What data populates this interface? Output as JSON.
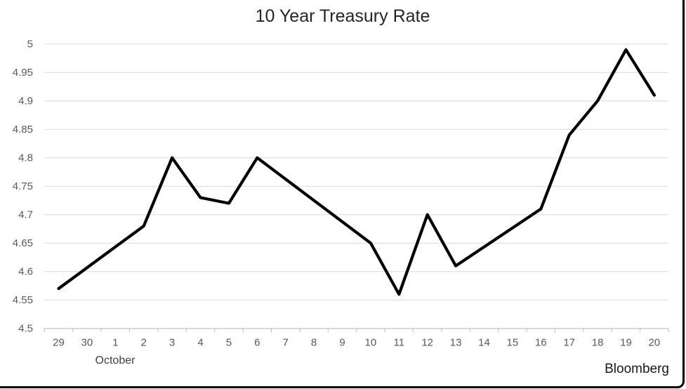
{
  "page": {
    "background": "#ffffff",
    "frame_border": "#000000"
  },
  "chart_data": {
    "type": "line",
    "title": "10 Year Treasury Rate",
    "month_label": "October",
    "source_label": "Bloomberg",
    "xlabel": "",
    "ylabel": "",
    "categories": [
      "29",
      "30",
      "1",
      "2",
      "3",
      "4",
      "5",
      "6",
      "7",
      "8",
      "9",
      "10",
      "11",
      "12",
      "13",
      "14",
      "15",
      "16",
      "17",
      "18",
      "19",
      "20"
    ],
    "series": [
      {
        "name": "10 Year Treasury Rate",
        "color": "#000000",
        "values": [
          4.57,
          null,
          null,
          4.68,
          4.8,
          4.73,
          4.72,
          4.8,
          null,
          null,
          null,
          4.65,
          4.56,
          4.7,
          4.61,
          null,
          null,
          4.71,
          4.84,
          4.9,
          4.99,
          4.91
        ],
        "gaps_connected": true
      }
    ],
    "ylim": [
      4.5,
      5.0
    ],
    "ytick_interval": 0.05,
    "ytick_labels": [
      "5",
      "4.95",
      "4.9",
      "4.85",
      "4.8",
      "4.75",
      "4.7",
      "4.65",
      "4.6",
      "4.55",
      "4.5"
    ],
    "grid": true,
    "legend": "none"
  },
  "colors": {
    "series_line": "#000000",
    "gridline": "#d9d9d9",
    "axis_line": "#bfbfbf",
    "axis_label": "#595959",
    "title_text": "#262626",
    "month_text": "#404040",
    "source_text": "#1a1a1a"
  }
}
